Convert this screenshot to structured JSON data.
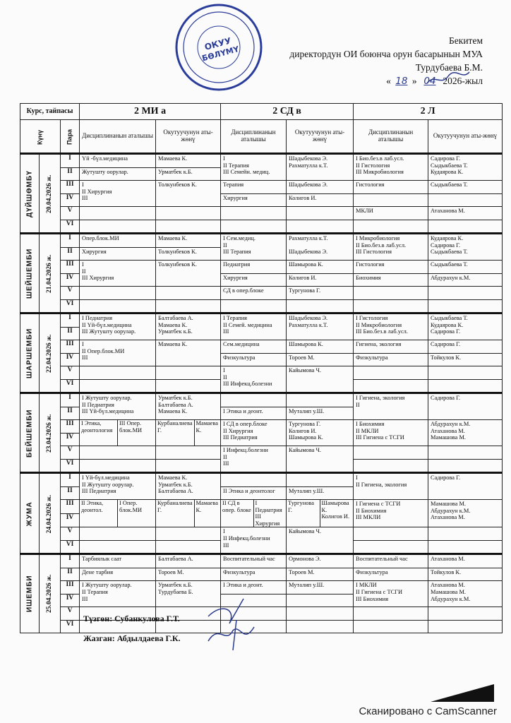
{
  "approval": {
    "title": "Бекитем",
    "position": "директордун ОИ боюнча орун басарынын МУА",
    "name": "Турдубаева Б.М.",
    "day": "18",
    "month": "04",
    "year": "2026-жыл"
  },
  "stamp": {
    "text": "ОКУУ БӨЛҮМҮ",
    "color": "#2b3d9a"
  },
  "header": {
    "course_label": "Курс, тайпасы",
    "day_label": "Күнү",
    "para_label": "Пара",
    "groups": [
      "2 МИ а",
      "2 СД в",
      "2 Л"
    ],
    "discipline_label": "Дисциплинанын аталышы",
    "teacher_label": "Окутуучунун аты-жөнү"
  },
  "paras": [
    "I",
    "II",
    "III",
    "IV",
    "V",
    "VI"
  ],
  "days": [
    {
      "name": "ДҮЙШӨМБҮ",
      "date": "20.04.2026 ж.",
      "groups": [
        {
          "blocks": [
            {
              "span": 1,
              "d": "Үй -бүл.медицина",
              "t": "Мамаева К."
            },
            {
              "span": 1,
              "d": "Жутушту оорулар.",
              "t": "Урматбек к.Б."
            },
            {
              "span": 2,
              "d": "I\nII  Хирургия\nIII",
              "t": "Толкунбеков К."
            },
            {
              "span": 1,
              "d": "",
              "t": ""
            },
            {
              "span": 1,
              "d": "",
              "t": ""
            }
          ]
        },
        {
          "blocks": [
            {
              "span": 2,
              "d": "I\nII  Терапия\nIII Семейн. медиц.",
              "t": "Шадыбекова Э.\nРахматулла к.Т."
            },
            {
              "span": 1,
              "d": "Терапия",
              "t": "Шадыбекова Э."
            },
            {
              "span": 1,
              "d": "Хирургия",
              "t": "Колигов И."
            },
            {
              "span": 1,
              "d": "",
              "t": ""
            },
            {
              "span": 1,
              "d": "",
              "t": ""
            }
          ]
        },
        {
          "blocks": [
            {
              "span": 2,
              "d": "I  Био.без.в лаб.усл.\nII  Гистология\nIII Микробиология",
              "t": "Садирова Г.\nСыдыкбаева Т.\nКудаярова К."
            },
            {
              "span": 1,
              "d": "Гистология",
              "t": "Сыдыкбаева Т."
            },
            {
              "span": 1,
              "d": "",
              "t": ""
            },
            {
              "span": 1,
              "d": "МКЛИ",
              "t": "Атаханова М."
            },
            {
              "span": 1,
              "d": "",
              "t": ""
            }
          ]
        }
      ]
    },
    {
      "name": "ШЕЙШЕМБИ",
      "date": "21.04.2026 ж.",
      "groups": [
        {
          "blocks": [
            {
              "span": 1,
              "d": "Опер.блок.МИ",
              "t": "Мамаева К."
            },
            {
              "span": 1,
              "d": "Хирургия",
              "t": "Толкунбеков К."
            },
            {
              "span": 2,
              "d": "I\nII\nIII Хирургия",
              "t": "Толкунбеков К."
            },
            {
              "span": 1,
              "d": "",
              "t": ""
            },
            {
              "span": 1,
              "d": "",
              "t": ""
            }
          ]
        },
        {
          "blocks": [
            {
              "span": 2,
              "d": "I  Сем.медиц.\nII\nIII Терапия",
              "t": "Рахматулла к.Т.\n\nШадыбекова Э."
            },
            {
              "span": 1,
              "d": "Педиатрия",
              "t": "Шамырова К."
            },
            {
              "span": 1,
              "d": "Хирургия",
              "t": "Колигов И."
            },
            {
              "span": 1,
              "d": "СД в опер.блоке",
              "t": "Тургунова Г."
            },
            {
              "span": 1,
              "d": "",
              "t": ""
            }
          ]
        },
        {
          "blocks": [
            {
              "span": 2,
              "d": "I  Микробиология\nII  Био.без.в лаб.усл.\nIII  Гистология",
              "t": "Кудаярова К.\nСадирова Г.\nСыдыкбаева Т."
            },
            {
              "span": 1,
              "d": "Гистология",
              "t": "Сыдыкбаева Т."
            },
            {
              "span": 1,
              "d": "Биохимия",
              "t": "Абдурахун к.М."
            },
            {
              "span": 1,
              "d": "",
              "t": ""
            },
            {
              "span": 1,
              "d": "",
              "t": ""
            }
          ]
        }
      ]
    },
    {
      "name": "ШАРШЕМБИ",
      "date": "22.04.2026 ж.",
      "groups": [
        {
          "blocks": [
            {
              "span": 2,
              "d": "I Педиатрия\nII Үй-бүл.медицина\nIII Жутушту оорулар.",
              "t": "Балтабаева А.\nМамаева К.\nУрматбек к.Б."
            },
            {
              "span": 2,
              "d": "I\nII  Опер.блок.МИ\nIII",
              "t": "Мамаева К."
            },
            {
              "span": 1,
              "d": "",
              "t": ""
            },
            {
              "span": 1,
              "d": "",
              "t": ""
            }
          ]
        },
        {
          "blocks": [
            {
              "span": 2,
              "d": "I  Терапия\nII Семей. медицина\nIII",
              "t": "Шадыбекова Э.\nРахматулла к.Т."
            },
            {
              "span": 1,
              "d": "Сем.медицина",
              "t": "Шамырова К."
            },
            {
              "span": 1,
              "d": "Физкультура",
              "t": "Тороев М."
            },
            {
              "span": 2,
              "d": "I\nII\nIII Инфекц.болезни",
              "t": "Кайымова Ч."
            }
          ]
        },
        {
          "blocks": [
            {
              "span": 2,
              "d": "I  Гистология\nII Микробиология\nIII Био.без.в лаб.усл.",
              "t": "Сыдыкбаева Т.\nКудаярова К.\nСадирова Г."
            },
            {
              "span": 1,
              "d": "Гигиена, экология",
              "t": "Садирова Г."
            },
            {
              "span": 1,
              "d": "Физкультура",
              "t": "Тойкулов К."
            },
            {
              "span": 1,
              "d": "",
              "t": ""
            },
            {
              "span": 1,
              "d": "",
              "t": ""
            }
          ]
        }
      ]
    },
    {
      "name": "БЕЙШЕМБИ",
      "date": "23.04.2026 ж.",
      "groups": [
        {
          "blocks": [
            {
              "span": 2,
              "d": "I Жутушту оорулар.\nII  Педиатрия\nIII Үй-бүл.медицина",
              "t": "Урматбек к.Б.\nБалтабаева А.\nМамаева К."
            },
            {
              "span": 2,
              "d": [
                "I Этика, деонтология",
                "III Опер. блок.МИ"
              ],
              "t": [
                "Курбаналиева Г.",
                "Мамаева К."
              ]
            },
            {
              "span": 1,
              "d": "",
              "t": ""
            },
            {
              "span": 1,
              "d": "",
              "t": ""
            }
          ]
        },
        {
          "blocks": [
            {
              "span": 1,
              "d": "",
              "t": ""
            },
            {
              "span": 1,
              "d": "I Этика и деонт.",
              "t": "Муталип у.Ш."
            },
            {
              "span": 2,
              "d": "I СД в опер.блоке\nII Хирургия\nIII  Педиатрия",
              "t": "Тургунова Г.\nКолигов И.\nШамырова К."
            },
            {
              "span": 2,
              "d": "I  Инфекц.болезни\nII\nIII",
              "t": "Кайымова Ч."
            }
          ]
        },
        {
          "blocks": [
            {
              "span": 2,
              "d": "I  Гигиена, экология\nII",
              "t": "Садирова Г."
            },
            {
              "span": 2,
              "d": "I Биохимия\nII  МКЛИ\nIII Гигиена с ТСГИ",
              "t": "Абдурахун к.М.\nАтаханова М.\nМамашова М."
            },
            {
              "span": 1,
              "d": "",
              "t": ""
            },
            {
              "span": 1,
              "d": "",
              "t": ""
            }
          ]
        }
      ]
    },
    {
      "name": "ЖУМА",
      "date": "24.04.2026 ж.",
      "groups": [
        {
          "blocks": [
            {
              "span": 2,
              "d": "I Үй-бүл.медицина\nII Жутушту оорулар.\nIII  Педиатрия",
              "t": "Мамаева К.\nУрматбек к.Б.\nБалтабаева А."
            },
            {
              "span": 2,
              "d": [
                "II Этика, деонтол.",
                "I Опер. блок.МИ"
              ],
              "t": [
                "Курбаналиева Г.",
                "Мамаева К."
              ]
            },
            {
              "span": 1,
              "d": "",
              "t": ""
            },
            {
              "span": 1,
              "d": "",
              "t": ""
            }
          ]
        },
        {
          "blocks": [
            {
              "span": 1,
              "d": "",
              "t": ""
            },
            {
              "span": 1,
              "d": "II  Этика и деонтолог",
              "t": "Муталип у.Ш."
            },
            {
              "span": 2,
              "d": [
                "II СД в опер. блоке",
                "I  Педиатрия\nIII Хирургия"
              ],
              "t": [
                "Тургунова Г.",
                "Шамырова К.\nКолигов И."
              ]
            },
            {
              "span": 2,
              "d": "I\nII  Инфекц.болезни\nIII",
              "t": "Кайымова Ч."
            }
          ]
        },
        {
          "blocks": [
            {
              "span": 2,
              "d": "I\nII Гигиена, экология",
              "t": "Садирова Г."
            },
            {
              "span": 2,
              "d": "I  Гигиена с ТСГИ\nII Биохимия\nIII МКЛИ",
              "t": "Мамашова М.\nАбдурахун к.М.\nАтаханова М."
            },
            {
              "span": 1,
              "d": "",
              "t": ""
            },
            {
              "span": 1,
              "d": "",
              "t": ""
            }
          ]
        }
      ]
    },
    {
      "name": "ИШЕМБИ",
      "date": "25.04.2026 ж.",
      "groups": [
        {
          "blocks": [
            {
              "span": 1,
              "d": "Тарбиялык саат",
              "t": "Балтабаева А."
            },
            {
              "span": 1,
              "d": "Дене тарбия",
              "t": "Тороев М."
            },
            {
              "span": 2,
              "d": "I Жутушту оорулар.\nII  Терапия\nIII",
              "t": "Урматбек к.Б.\nТурдубаева Б."
            },
            {
              "span": 1,
              "d": "",
              "t": ""
            },
            {
              "span": 1,
              "d": "",
              "t": ""
            }
          ]
        },
        {
          "blocks": [
            {
              "span": 1,
              "d": "Воспитательный час",
              "t": "Ормонова Э."
            },
            {
              "span": 1,
              "d": "Физкультура",
              "t": "Тороев М."
            },
            {
              "span": 1,
              "d": "I Этика и деонт.",
              "t": "Муталип у.Ш."
            },
            {
              "span": 1,
              "d": "",
              "t": ""
            },
            {
              "span": 1,
              "d": "",
              "t": ""
            },
            {
              "span": 1,
              "d": "",
              "t": ""
            }
          ]
        },
        {
          "blocks": [
            {
              "span": 1,
              "d": "Воспитательный час",
              "t": "Атаханова М."
            },
            {
              "span": 1,
              "d": "Физкультура",
              "t": "Тойкулов К."
            },
            {
              "span": 2,
              "d": "I  МКЛИ\nII Гигиена с ТСГИ\nIII Биохимия",
              "t": "Атаханова М.\nМамашова М.\nАбдурахун к.М."
            },
            {
              "span": 1,
              "d": "",
              "t": ""
            },
            {
              "span": 1,
              "d": "",
              "t": ""
            }
          ]
        }
      ]
    }
  ],
  "footer": {
    "compiled": "Түзгөн: Субанкулова Г.Т.",
    "written": "Жазган: Абдылдаева Г.К."
  },
  "scanner": "Сканировано с CamScanner"
}
